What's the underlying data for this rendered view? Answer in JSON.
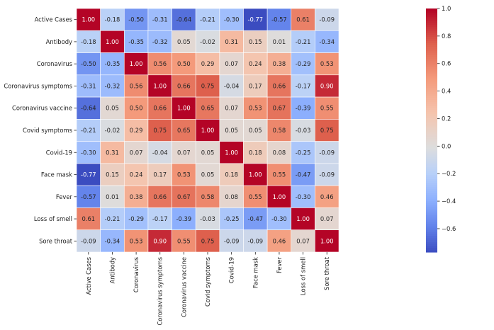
{
  "chart_data": {
    "type": "heatmap",
    "title": "",
    "xlabel": "",
    "ylabel": "",
    "colormap": "coolwarm",
    "value_range": [
      -0.77,
      1.0
    ],
    "labels": [
      "Active Cases",
      "Antibody",
      "Coronavirus",
      "Coronavirus symptoms",
      "Coronavirus vaccine",
      "Covid symptoms",
      "Covid-19",
      "Face mask",
      "Fever",
      "Loss of smell",
      "Sore throat"
    ],
    "matrix": [
      [
        1.0,
        -0.18,
        -0.5,
        -0.31,
        -0.64,
        -0.21,
        -0.3,
        -0.77,
        -0.57,
        0.61,
        -0.09
      ],
      [
        -0.18,
        1.0,
        -0.35,
        -0.32,
        0.05,
        -0.02,
        0.31,
        0.15,
        0.01,
        -0.21,
        -0.34
      ],
      [
        -0.5,
        -0.35,
        1.0,
        0.56,
        0.5,
        0.29,
        0.07,
        0.24,
        0.38,
        -0.29,
        0.53
      ],
      [
        -0.31,
        -0.32,
        0.56,
        1.0,
        0.66,
        0.75,
        -0.04,
        0.17,
        0.66,
        -0.17,
        0.9
      ],
      [
        -0.64,
        0.05,
        0.5,
        0.66,
        1.0,
        0.65,
        0.07,
        0.53,
        0.67,
        -0.39,
        0.55
      ],
      [
        -0.21,
        -0.02,
        0.29,
        0.75,
        0.65,
        1.0,
        0.05,
        0.05,
        0.58,
        -0.03,
        0.75
      ],
      [
        -0.3,
        0.31,
        0.07,
        -0.04,
        0.07,
        0.05,
        1.0,
        0.18,
        0.08,
        -0.25,
        -0.09
      ],
      [
        -0.77,
        0.15,
        0.24,
        0.17,
        0.53,
        0.05,
        0.18,
        1.0,
        0.55,
        -0.47,
        -0.09
      ],
      [
        -0.57,
        0.01,
        0.38,
        0.66,
        0.67,
        0.58,
        0.08,
        0.55,
        1.0,
        -0.3,
        0.46
      ],
      [
        0.61,
        -0.21,
        -0.29,
        -0.17,
        -0.39,
        -0.03,
        -0.25,
        -0.47,
        -0.3,
        1.0,
        0.07
      ],
      [
        -0.09,
        -0.34,
        0.53,
        0.9,
        0.55,
        0.75,
        -0.09,
        -0.09,
        0.46,
        0.07,
        1.0
      ]
    ],
    "colorbar_ticks": [
      1.0,
      0.8,
      0.6,
      0.4,
      0.2,
      0.0,
      -0.2,
      -0.4,
      -0.6
    ],
    "colorbar_tick_labels": [
      "1.0",
      "0.8",
      "0.6",
      "0.4",
      "0.2",
      "0.0",
      "−0.2",
      "−0.4",
      "−0.6"
    ]
  }
}
